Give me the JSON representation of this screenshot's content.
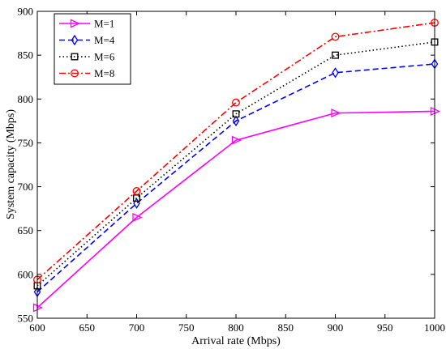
{
  "chart_data": {
    "type": "line",
    "title": "",
    "xlabel": "Arrival rate (Mbps)",
    "ylabel": "System capacity (Mbps)",
    "x": [
      600,
      700,
      800,
      900,
      1000
    ],
    "xlim": [
      600,
      1000
    ],
    "ylim": [
      550,
      900
    ],
    "xticks": [
      600,
      650,
      700,
      750,
      800,
      850,
      900,
      950,
      1000
    ],
    "yticks": [
      550,
      600,
      650,
      700,
      750,
      800,
      850,
      900
    ],
    "grid": false,
    "legend_position": "top-left",
    "series": [
      {
        "name": "M=1",
        "values": [
          562,
          665,
          753,
          784,
          786
        ],
        "color": "#ff00ff",
        "dash": "solid",
        "marker": "triangle-right"
      },
      {
        "name": "M=4",
        "values": [
          580,
          681,
          775,
          830,
          840
        ],
        "color": "#0000ff",
        "dash": "dashed",
        "marker": "diamond"
      },
      {
        "name": "M=6",
        "values": [
          587,
          687,
          783,
          850,
          865
        ],
        "color": "#000000",
        "dash": "dotted",
        "marker": "square"
      },
      {
        "name": "M=8",
        "values": [
          594,
          695,
          796,
          871,
          887
        ],
        "color": "#ff0000",
        "dash": "dashdot",
        "marker": "circle"
      }
    ]
  }
}
